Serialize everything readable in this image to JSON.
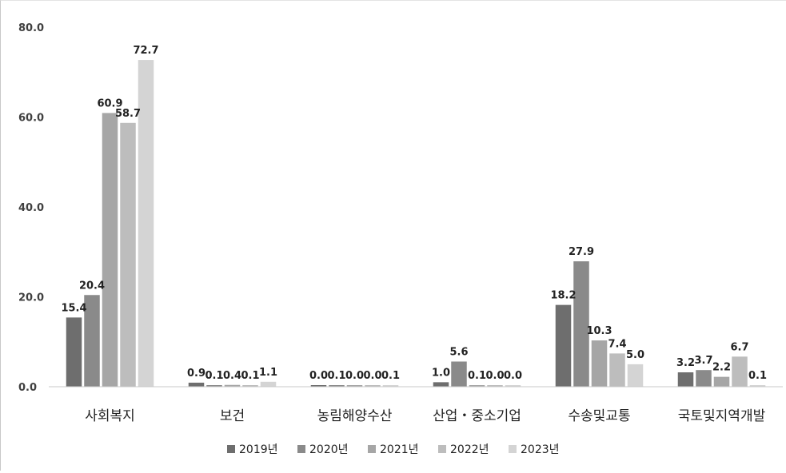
{
  "chart_data": {
    "type": "bar",
    "title": "",
    "xlabel": "",
    "ylabel": "",
    "ylim": [
      0,
      80
    ],
    "yticks": [
      "0.0",
      "20.0",
      "40.0",
      "60.0",
      "80.0"
    ],
    "grid": false,
    "legend_position": "bottom",
    "categories": [
      "사회복지",
      "보건",
      "농림해양수산",
      "산업・중소기업",
      "수송및교통",
      "국토및지역개발"
    ],
    "series": [
      {
        "name": "2019년",
        "color": "#6e6e6e",
        "values": [
          15.4,
          0.9,
          0.0,
          1.0,
          18.2,
          3.2
        ],
        "labels": [
          "15.4",
          "0.9",
          "0.0",
          "1.0",
          "18.2",
          "3.2"
        ]
      },
      {
        "name": "2020년",
        "color": "#8a8a8a",
        "values": [
          20.4,
          0.1,
          0.1,
          5.6,
          27.9,
          3.7
        ],
        "labels": [
          "20.4",
          "0.1",
          "0.1",
          "5.6",
          "27.9",
          "3.7"
        ]
      },
      {
        "name": "2021년",
        "color": "#a6a6a6",
        "values": [
          60.9,
          0.4,
          0.0,
          0.1,
          10.3,
          2.2
        ],
        "labels": [
          "60.9",
          "0.4",
          "0.0",
          "0.1",
          "10.3",
          "2.2"
        ]
      },
      {
        "name": "2022년",
        "color": "#bdbdbd",
        "values": [
          58.7,
          0.1,
          0.0,
          0.0,
          7.4,
          6.7
        ],
        "labels": [
          "58.7",
          "0.1",
          "0.0",
          "0.0",
          "7.4",
          "6.7"
        ]
      },
      {
        "name": "2023년",
        "color": "#d4d4d4",
        "values": [
          72.7,
          1.1,
          0.1,
          0.0,
          5.0,
          0.1
        ],
        "labels": [
          "72.7",
          "1.1",
          "0.1",
          "0.0",
          "5.0",
          "0.1"
        ]
      }
    ]
  }
}
